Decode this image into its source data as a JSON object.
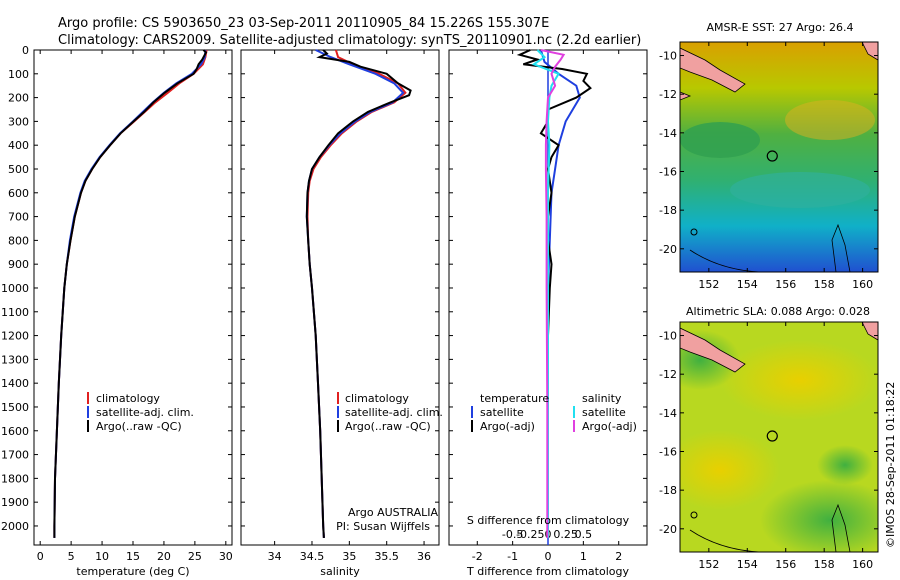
{
  "header": {
    "line1": "Argo profile: CS 5903650_23 03-Sep-2011 20110905_84 15.226S 155.307E",
    "line2": "Climatology: CARS2009. Satellite-adjusted climatology: synTS_20110901.nc (2.2d earlier)"
  },
  "colors": {
    "clim": "#e02020",
    "sat": "#1f3fdf",
    "argo": "#000000",
    "sal_sat": "#20e0f0",
    "sal_argo": "#e040e0"
  },
  "depth_axis": {
    "ticks": [
      "0",
      "100",
      "200",
      "300",
      "400",
      "500",
      "600",
      "700",
      "800",
      "900",
      "1000",
      "1100",
      "1200",
      "1300",
      "1400",
      "1500",
      "1600",
      "1700",
      "1800",
      "1900",
      "2000"
    ]
  },
  "chart_data": [
    {
      "type": "line",
      "id": "temperature",
      "xlabel": "temperature (deg C)",
      "xlim": [
        -1,
        31
      ],
      "ylim": [
        2080,
        0
      ],
      "xticks": [
        "0",
        "5",
        "10",
        "15",
        "20",
        "25",
        "30"
      ],
      "legend": [
        "climatology",
        "satellite-adj. clim.",
        "Argo(..raw -QC)"
      ],
      "series": [
        {
          "name": "climatology",
          "depth": [
            0,
            30,
            60,
            100,
            140,
            180,
            220,
            260,
            300,
            350,
            400,
            450,
            500,
            550,
            600,
            700,
            800,
            900,
            1000,
            1200,
            1400,
            1600,
            1800,
            2000,
            2050
          ],
          "values": [
            26.9,
            26.7,
            26.3,
            24.8,
            22.5,
            20.6,
            18.6,
            16.9,
            15.2,
            13.0,
            11.3,
            9.7,
            8.4,
            7.3,
            6.6,
            5.6,
            4.9,
            4.3,
            3.9,
            3.4,
            3.0,
            2.7,
            2.4,
            2.3,
            2.3
          ]
        },
        {
          "name": "satellite-adj. clim.",
          "depth": [
            0,
            30,
            60,
            100,
            140,
            180,
            220,
            260,
            300,
            350,
            400,
            450,
            500,
            550,
            600,
            700,
            800,
            900,
            1000,
            1200,
            1400,
            1600,
            1800,
            2000,
            2050
          ],
          "values": [
            26.7,
            26.6,
            26.0,
            24.5,
            22.0,
            20.0,
            18.2,
            16.6,
            15.0,
            12.9,
            11.2,
            9.6,
            8.3,
            7.2,
            6.5,
            5.5,
            4.8,
            4.3,
            3.9,
            3.4,
            3.0,
            2.7,
            2.4,
            2.3,
            2.3
          ]
        },
        {
          "name": "Argo(..raw -QC)",
          "depth": [
            0,
            10,
            40,
            60,
            80,
            100,
            140,
            180,
            220,
            260,
            300,
            350,
            400,
            450,
            500,
            550,
            600,
            700,
            800,
            900,
            1000,
            1200,
            1400,
            1600,
            1800,
            2000,
            2050
          ],
          "values": [
            26.4,
            26.8,
            26.2,
            25.6,
            25.3,
            24.8,
            22.2,
            20.1,
            18.3,
            16.8,
            15.1,
            13.0,
            11.3,
            9.7,
            8.4,
            7.3,
            6.6,
            5.6,
            4.9,
            4.3,
            3.9,
            3.4,
            3.0,
            2.7,
            2.4,
            2.3,
            2.3
          ]
        }
      ]
    },
    {
      "type": "line",
      "id": "salinity",
      "xlabel": "salinity",
      "xlim": [
        33.55,
        36.2
      ],
      "ylim": [
        2080,
        0
      ],
      "xticks": [
        "34",
        "34.5",
        "35",
        "35.5",
        "36"
      ],
      "legend": [
        "climatology",
        "satellite-adj. clim.",
        "Argo(..raw -QC)"
      ],
      "annotation": [
        "Argo AUSTRALIA",
        "PI: Susan Wijffels"
      ],
      "series": [
        {
          "name": "climatology",
          "depth": [
            0,
            30,
            60,
            100,
            140,
            180,
            220,
            260,
            300,
            350,
            400,
            450,
            500,
            550,
            600,
            700,
            800,
            900,
            1000,
            1200,
            1400,
            1600,
            1800,
            2000,
            2050
          ],
          "values": [
            34.82,
            34.85,
            35.05,
            35.4,
            35.65,
            35.75,
            35.6,
            35.3,
            35.1,
            34.9,
            34.75,
            34.62,
            34.52,
            34.47,
            34.45,
            34.44,
            34.45,
            34.47,
            34.5,
            34.55,
            34.58,
            34.61,
            34.63,
            34.65,
            34.66
          ]
        },
        {
          "name": "satellite-adj. clim.",
          "depth": [
            0,
            30,
            60,
            100,
            140,
            180,
            220,
            260,
            300,
            350,
            400,
            450,
            500,
            550,
            600,
            700,
            800,
            900,
            1000,
            1200,
            1400,
            1600,
            1800,
            2000,
            2050
          ],
          "values": [
            34.55,
            34.75,
            35.0,
            35.35,
            35.6,
            35.72,
            35.58,
            35.28,
            35.08,
            34.88,
            34.73,
            34.6,
            34.5,
            34.46,
            34.44,
            34.43,
            34.45,
            34.47,
            34.5,
            34.55,
            34.58,
            34.61,
            34.63,
            34.65,
            34.66
          ]
        },
        {
          "name": "Argo(..raw -QC)",
          "depth": [
            0,
            15,
            30,
            50,
            70,
            100,
            140,
            170,
            190,
            220,
            260,
            300,
            350,
            400,
            450,
            500,
            550,
            600,
            700,
            800,
            900,
            1000,
            1200,
            1400,
            1600,
            1800,
            2000,
            2050
          ],
          "values": [
            34.65,
            34.7,
            34.6,
            35.0,
            35.15,
            35.5,
            35.65,
            35.82,
            35.8,
            35.55,
            35.25,
            35.05,
            34.85,
            34.72,
            34.6,
            34.5,
            34.46,
            34.44,
            34.43,
            34.45,
            34.47,
            34.5,
            34.55,
            34.58,
            34.61,
            34.63,
            34.65,
            34.66
          ]
        }
      ]
    },
    {
      "type": "line",
      "id": "difference",
      "xlabel": "T difference from climatology",
      "top_label": "S difference from climatology",
      "xlim": [
        -2.8,
        2.8
      ],
      "ylim": [
        2080,
        0
      ],
      "xticks": [
        "-2",
        "-1",
        "0",
        "1",
        "2"
      ],
      "top_xticks": [
        "-0.5",
        "-0.25",
        "0",
        "0.25",
        "0.5"
      ],
      "legend_temp": [
        "temperature",
        "satellite",
        "Argo(-adj)"
      ],
      "legend_sal": [
        "salinity",
        "satellite",
        "Argo(-adj)"
      ],
      "series": [
        {
          "name": "temperature satellite",
          "depth": [
            0,
            50,
            100,
            150,
            200,
            300,
            400,
            500,
            600,
            800,
            1000,
            1500,
            2050
          ],
          "values": [
            -0.2,
            -0.1,
            0.3,
            0.8,
            0.9,
            0.5,
            0.3,
            0.2,
            0.1,
            0.05,
            0.0,
            0.0,
            0.0
          ]
        },
        {
          "name": "temperature Argo(-adj)",
          "depth": [
            0,
            20,
            40,
            60,
            80,
            100,
            130,
            160,
            200,
            250,
            300,
            350,
            400,
            450,
            500,
            600,
            700,
            800,
            900,
            1000,
            1200,
            1600,
            2050
          ],
          "values": [
            -0.5,
            -0.8,
            -0.3,
            -0.7,
            0.4,
            1.1,
            1.0,
            1.2,
            0.8,
            0.0,
            0.0,
            -0.2,
            0.3,
            0.1,
            0.0,
            0.1,
            0.0,
            0.0,
            0.1,
            0.05,
            0.0,
            0.0,
            0.0
          ]
        },
        {
          "name": "salinity satellite",
          "depth": [
            0,
            30,
            60,
            100,
            150,
            200,
            300,
            400,
            600,
            1000,
            2050
          ],
          "values": [
            -0.15,
            -0.05,
            -0.2,
            0.15,
            0.05,
            0.02,
            0.0,
            0.02,
            0.0,
            0.0,
            0.0
          ]
        },
        {
          "name": "salinity Argo(-adj)",
          "depth": [
            0,
            20,
            40,
            70,
            100,
            150,
            200,
            300,
            400,
            500,
            700,
            1000,
            1500,
            2050
          ],
          "values": [
            -0.1,
            0.22,
            0.18,
            0.1,
            0.05,
            0.1,
            0.0,
            -0.02,
            -0.03,
            -0.03,
            -0.02,
            -0.02,
            -0.01,
            -0.01
          ]
        }
      ]
    }
  ],
  "maps": {
    "sst": {
      "title": "AMSR-E SST: 27 Argo: 26.4",
      "yticks": [
        "-10",
        "-12",
        "-14",
        "-16",
        "-18",
        "-20"
      ],
      "xticks": [
        "152",
        "154",
        "156",
        "158",
        "160"
      ],
      "marker": {
        "lon": 155.3,
        "lat": -15.2
      }
    },
    "sla": {
      "title": "Altimetric SLA: 0.088 Argo: 0.028",
      "yticks": [
        "-10",
        "-12",
        "-14",
        "-16",
        "-18",
        "-20"
      ],
      "xticks": [
        "152",
        "154",
        "156",
        "158",
        "160"
      ],
      "marker": {
        "lon": 155.3,
        "lat": -15.2
      }
    }
  },
  "footer": {
    "credit": "©IMOS 28-Sep-2011 01:18:22"
  }
}
